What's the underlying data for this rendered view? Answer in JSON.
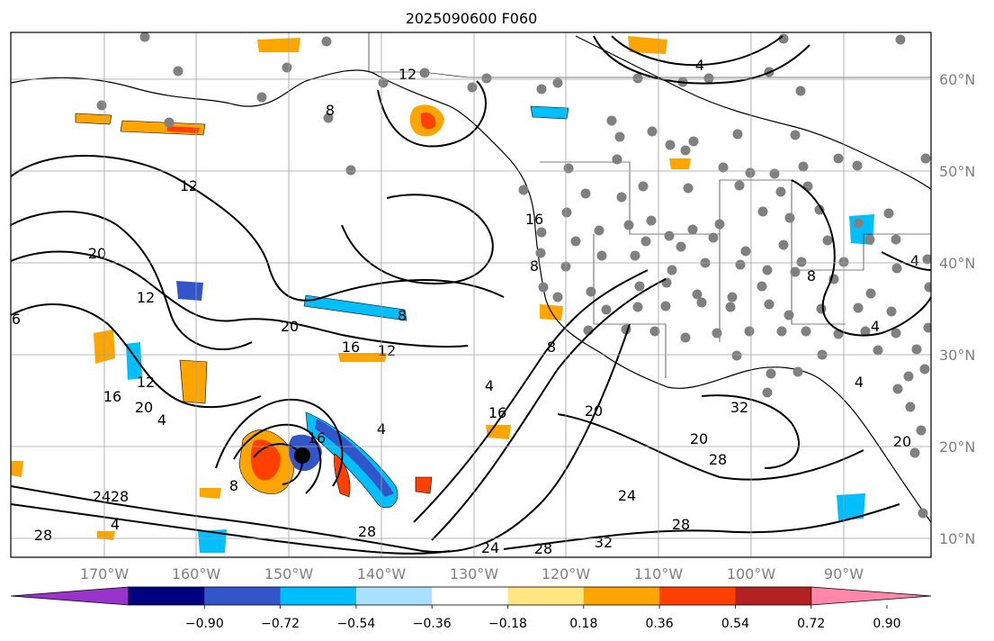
{
  "title": "2025090600 F060",
  "map": {
    "lon_labels": [
      "170°W",
      "160°W",
      "150°W",
      "140°W",
      "130°W",
      "120°W",
      "110°W",
      "100°W",
      "90°W"
    ],
    "lat_labels": [
      "60°N",
      "50°N",
      "40°N",
      "30°N",
      "20°N",
      "10°N"
    ],
    "contour_labels": [
      "12",
      "8",
      "12",
      "20",
      "6",
      "12",
      "20",
      "8",
      "16",
      "12",
      "16",
      "20",
      "4",
      "12",
      "4",
      "16",
      "20",
      "8",
      "4",
      "16",
      "8",
      "4",
      "28",
      "4",
      "20",
      "32",
      "28",
      "20",
      "8",
      "24",
      "28",
      "28",
      "32",
      "28",
      "24",
      "28",
      "24",
      "4",
      "4",
      "8",
      "16",
      "4"
    ],
    "colors": {
      "land_outline": "#000000",
      "contour": "#000000",
      "grid": "#a0a0a0",
      "station_dots": "#808080",
      "storm_center": "#000000"
    }
  },
  "colorbar": {
    "tick_labels": [
      "−0.90",
      "−0.72",
      "−0.54",
      "−0.36",
      "−0.18",
      "0.18",
      "0.36",
      "0.54",
      "0.72",
      "0.90"
    ],
    "colors": [
      "#9933cc",
      "#000080",
      "#3355cc",
      "#00bfff",
      "#aae0ff",
      "#ffffff",
      "#ffe680",
      "#ffa500",
      "#ff4000",
      "#b22222",
      "#ff88aa"
    ]
  }
}
